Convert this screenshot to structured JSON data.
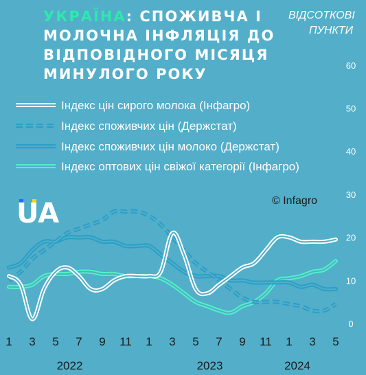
{
  "chart_data": {
    "type": "line",
    "title_accent": "УКРАЇНА",
    "title_lines": [
      ": СПОЖИВЧА І",
      "МОЛОЧНА ІНФЛЯЦІЯ ДО",
      "ВІДПОВІДНОГО МІСЯЦЯ",
      "МИНУЛОГО РОКУ"
    ],
    "ylabel_lines": [
      "ВІДСОТКОВІ",
      "ПУНКТИ"
    ],
    "ylim": [
      0,
      60
    ],
    "yticks": [
      0,
      10,
      20,
      30,
      40,
      50,
      60
    ],
    "x_tick_labels": [
      "1",
      "3",
      "5",
      "7",
      "9",
      "11",
      "1",
      "3",
      "5",
      "7",
      "9",
      "11",
      "1",
      "3",
      "5"
    ],
    "years": [
      "2022",
      "2023",
      "2024"
    ],
    "legend_placement": "top-left",
    "credit": "© Infagro",
    "logo": "UA",
    "series": [
      {
        "name": "Індекс цін сирого молока (Інфагро)",
        "style": "double-white",
        "values": [
          11,
          9,
          1,
          8,
          12,
          13,
          11,
          8,
          8,
          10,
          11,
          11,
          11,
          12,
          21,
          16,
          8,
          7,
          9,
          11,
          13,
          14,
          17,
          20,
          20,
          19,
          19,
          19,
          19.5
        ]
      },
      {
        "name": "Індекс споживчих цін (Держстат)",
        "style": "double-dashed",
        "values": [
          10,
          12,
          15,
          17,
          19,
          21,
          22,
          23,
          24,
          26,
          26,
          26,
          25,
          23,
          20,
          17,
          14,
          12,
          10,
          8,
          6,
          5,
          5,
          5,
          4.5,
          4,
          3,
          3,
          4.5
        ]
      },
      {
        "name": "Індекс споживчих цін молоко (Держстат)",
        "style": "double-blue",
        "values": [
          13,
          14,
          17,
          19,
          19,
          20,
          20,
          20,
          19,
          19,
          18,
          18,
          18,
          16,
          14,
          12,
          11,
          11,
          11,
          10,
          10,
          9.5,
          9.5,
          9.5,
          9.5,
          8.5,
          9,
          8,
          8
        ]
      },
      {
        "name": "Індекс оптових цін свіжої категорії (Інфагро)",
        "style": "double-mint",
        "values": [
          8.5,
          8.5,
          9,
          11,
          11.5,
          11.5,
          12,
          12,
          11.5,
          11.5,
          11,
          11,
          11,
          10.5,
          9,
          7,
          5,
          4,
          3,
          2.5,
          4,
          5,
          7,
          10,
          10.5,
          11,
          12,
          12.5,
          14.5
        ]
      }
    ],
    "colors": {
      "background": "#52aec9",
      "white_line": "#ffffff",
      "blue_line": "#2a9fc8",
      "mint_line": "#4ff2c6",
      "accent": "#2ee8b0",
      "logo_blue": "#1d6fff",
      "logo_yellow": "#ffd500"
    }
  }
}
